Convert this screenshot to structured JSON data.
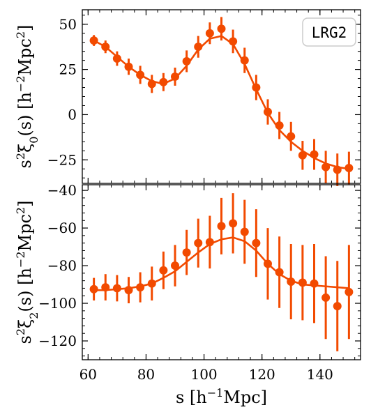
{
  "chart_data": [
    {
      "type": "scatter",
      "panel": "top",
      "ylabel_parts": [
        "s",
        "2",
        "ξ",
        "0",
        "(s) [h",
        "−2",
        "Mpc",
        "2",
        "]"
      ],
      "ylim": [
        -38,
        58
      ],
      "yticks": [
        50,
        25,
        0,
        -25
      ],
      "ytick_labels": [
        "50",
        "25",
        "0",
        "−25"
      ],
      "xlim": [
        58,
        154
      ],
      "legend": {
        "text": "LRG2",
        "position": "top-right"
      },
      "color": "#f24a00",
      "points": [
        {
          "x": 62,
          "y": 41,
          "err": 3
        },
        {
          "x": 66,
          "y": 37.5,
          "err": 3.5
        },
        {
          "x": 70,
          "y": 31,
          "err": 4
        },
        {
          "x": 74,
          "y": 26.5,
          "err": 4.5
        },
        {
          "x": 78,
          "y": 22,
          "err": 5
        },
        {
          "x": 82,
          "y": 17,
          "err": 5
        },
        {
          "x": 86,
          "y": 18,
          "err": 5
        },
        {
          "x": 90,
          "y": 21,
          "err": 5
        },
        {
          "x": 94,
          "y": 29.5,
          "err": 6
        },
        {
          "x": 98,
          "y": 37.5,
          "err": 6
        },
        {
          "x": 102,
          "y": 45,
          "err": 6
        },
        {
          "x": 106,
          "y": 47.5,
          "err": 6.5
        },
        {
          "x": 110,
          "y": 40.5,
          "err": 6.5
        },
        {
          "x": 114,
          "y": 30,
          "err": 7
        },
        {
          "x": 118,
          "y": 15,
          "err": 7
        },
        {
          "x": 122,
          "y": 1.5,
          "err": 7
        },
        {
          "x": 126,
          "y": -6,
          "err": 7.5
        },
        {
          "x": 130,
          "y": -12,
          "err": 8
        },
        {
          "x": 134,
          "y": -22.5,
          "err": 8
        },
        {
          "x": 138,
          "y": -22,
          "err": 8.5
        },
        {
          "x": 142,
          "y": -29,
          "err": 9
        },
        {
          "x": 146,
          "y": -30.5,
          "err": 9
        },
        {
          "x": 150,
          "y": -29.5,
          "err": 9
        }
      ],
      "model": {
        "x": [
          62,
          66,
          70,
          74,
          78,
          82,
          86,
          90,
          94,
          98,
          102,
          106,
          110,
          114,
          118,
          122,
          126,
          130,
          134,
          138,
          142,
          146,
          150
        ],
        "y": [
          41,
          37.5,
          32,
          26.5,
          22,
          18.5,
          17,
          20,
          27,
          36,
          42,
          43.5,
          39,
          28,
          14,
          1,
          -8.5,
          -15,
          -20,
          -24,
          -27,
          -29,
          -30
        ]
      }
    },
    {
      "type": "scatter",
      "panel": "bottom",
      "ylabel_parts": [
        "s",
        "2",
        "ξ",
        "2",
        "(s) [h",
        "−2",
        "Mpc",
        "2",
        "]"
      ],
      "ylim": [
        -130,
        -37
      ],
      "yticks": [
        -40,
        -60,
        -80,
        -100,
        -120
      ],
      "ytick_labels": [
        "−40",
        "−60",
        "−80",
        "−100",
        "−120"
      ],
      "xlim": [
        58,
        154
      ],
      "xticks": [
        60,
        80,
        100,
        120,
        140
      ],
      "xtick_labels": [
        "60",
        "80",
        "100",
        "120",
        "140"
      ],
      "xlabel_parts": [
        "s [h",
        "−1",
        "Mpc]"
      ],
      "color": "#f24a00",
      "points": [
        {
          "x": 62,
          "y": -92.5,
          "err": 6
        },
        {
          "x": 66,
          "y": -91.5,
          "err": 7
        },
        {
          "x": 70,
          "y": -92,
          "err": 7
        },
        {
          "x": 74,
          "y": -93,
          "err": 7
        },
        {
          "x": 78,
          "y": -91.5,
          "err": 8
        },
        {
          "x": 82,
          "y": -89.5,
          "err": 9
        },
        {
          "x": 86,
          "y": -82.5,
          "err": 10
        },
        {
          "x": 90,
          "y": -80,
          "err": 11
        },
        {
          "x": 94,
          "y": -73,
          "err": 12
        },
        {
          "x": 98,
          "y": -68,
          "err": 13
        },
        {
          "x": 102,
          "y": -67.5,
          "err": 14
        },
        {
          "x": 106,
          "y": -59,
          "err": 15
        },
        {
          "x": 110,
          "y": -57.5,
          "err": 16
        },
        {
          "x": 114,
          "y": -62,
          "err": 17
        },
        {
          "x": 118,
          "y": -68,
          "err": 18
        },
        {
          "x": 122,
          "y": -79,
          "err": 19
        },
        {
          "x": 126,
          "y": -83.5,
          "err": 19
        },
        {
          "x": 130,
          "y": -88.5,
          "err": 20
        },
        {
          "x": 134,
          "y": -89,
          "err": 20
        },
        {
          "x": 138,
          "y": -89.5,
          "err": 21
        },
        {
          "x": 142,
          "y": -97,
          "err": 22
        },
        {
          "x": 146,
          "y": -101.5,
          "err": 24
        },
        {
          "x": 150,
          "y": -94,
          "err": 25
        }
      ],
      "model": {
        "x": [
          62,
          66,
          70,
          74,
          78,
          82,
          86,
          90,
          94,
          98,
          102,
          106,
          110,
          114,
          118,
          122,
          126,
          130,
          134,
          138,
          142,
          146,
          150
        ],
        "y": [
          -93,
          -93,
          -92.5,
          -92,
          -91,
          -89.5,
          -86.5,
          -83,
          -78,
          -73,
          -68.5,
          -66,
          -65,
          -67,
          -72,
          -79,
          -84.5,
          -88,
          -90,
          -90.5,
          -91,
          -91.5,
          -92
        ]
      }
    }
  ]
}
